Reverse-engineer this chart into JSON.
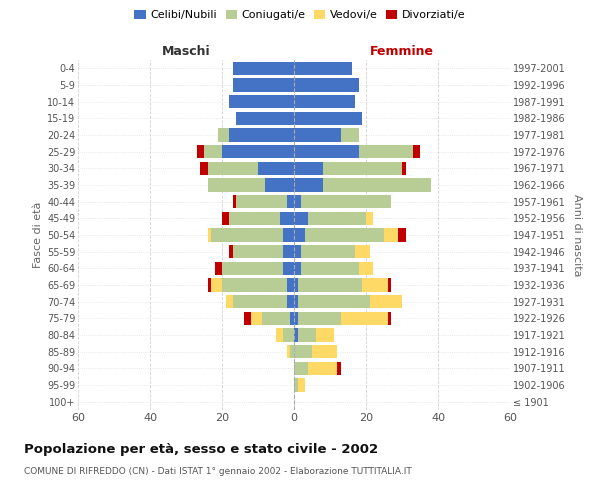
{
  "age_groups": [
    "100+",
    "95-99",
    "90-94",
    "85-89",
    "80-84",
    "75-79",
    "70-74",
    "65-69",
    "60-64",
    "55-59",
    "50-54",
    "45-49",
    "40-44",
    "35-39",
    "30-34",
    "25-29",
    "20-24",
    "15-19",
    "10-14",
    "5-9",
    "0-4"
  ],
  "birth_years": [
    "≤ 1901",
    "1902-1906",
    "1907-1911",
    "1912-1916",
    "1917-1921",
    "1922-1926",
    "1927-1931",
    "1932-1936",
    "1937-1941",
    "1942-1946",
    "1947-1951",
    "1952-1956",
    "1957-1961",
    "1962-1966",
    "1967-1971",
    "1972-1976",
    "1977-1981",
    "1982-1986",
    "1987-1991",
    "1992-1996",
    "1997-2001"
  ],
  "male": {
    "celibi": [
      0,
      0,
      0,
      0,
      0,
      1,
      2,
      2,
      3,
      3,
      3,
      4,
      2,
      8,
      10,
      20,
      18,
      16,
      18,
      17,
      17
    ],
    "coniugati": [
      0,
      0,
      0,
      1,
      3,
      8,
      15,
      18,
      17,
      14,
      20,
      14,
      14,
      16,
      14,
      5,
      3,
      0,
      0,
      0,
      0
    ],
    "vedovi": [
      0,
      0,
      0,
      1,
      2,
      3,
      2,
      3,
      0,
      0,
      1,
      0,
      0,
      0,
      0,
      0,
      0,
      0,
      0,
      0,
      0
    ],
    "divorziati": [
      0,
      0,
      0,
      0,
      0,
      2,
      0,
      1,
      2,
      1,
      0,
      2,
      1,
      0,
      2,
      2,
      0,
      0,
      0,
      0,
      0
    ]
  },
  "female": {
    "nubili": [
      0,
      0,
      0,
      0,
      1,
      1,
      1,
      1,
      2,
      2,
      3,
      4,
      2,
      8,
      8,
      18,
      13,
      19,
      17,
      18,
      16
    ],
    "coniugate": [
      0,
      1,
      4,
      5,
      5,
      12,
      20,
      18,
      16,
      15,
      22,
      16,
      25,
      30,
      22,
      15,
      5,
      0,
      0,
      0,
      0
    ],
    "vedove": [
      0,
      2,
      8,
      7,
      5,
      13,
      9,
      7,
      4,
      4,
      4,
      2,
      0,
      0,
      0,
      0,
      0,
      0,
      0,
      0,
      0
    ],
    "divorziate": [
      0,
      0,
      1,
      0,
      0,
      1,
      0,
      1,
      0,
      0,
      2,
      0,
      0,
      0,
      1,
      2,
      0,
      0,
      0,
      0,
      0
    ]
  },
  "colors": {
    "celibi_nubili": "#4472C4",
    "coniugati": "#B8CC96",
    "vedovi": "#FFD966",
    "divorziati": "#C00000"
  },
  "xlim": 60,
  "title": "Popolazione per età, sesso e stato civile - 2002",
  "subtitle": "COMUNE DI RIFREDDO (CN) - Dati ISTAT 1° gennaio 2002 - Elaborazione TUTTITALIA.IT",
  "xlabel_left": "Maschi",
  "xlabel_right": "Femmine",
  "ylabel_left": "Fasce di età",
  "ylabel_right": "Anni di nascita",
  "legend_labels": [
    "Celibi/Nubili",
    "Coniugati/e",
    "Vedovi/e",
    "Divorziati/e"
  ],
  "background_color": "#ffffff",
  "grid_color": "#cccccc"
}
